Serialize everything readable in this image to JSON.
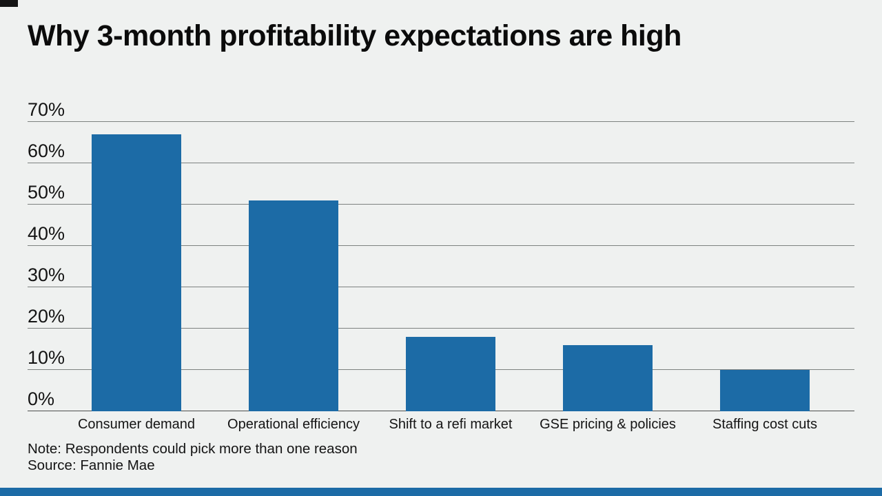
{
  "page": {
    "title": "Why 3-month profitability expectations are high",
    "note": "Note: Respondents could pick more than one reason",
    "source": "Source: Fannie Mae"
  },
  "colors": {
    "background": "#eff1f0",
    "bar": "#1c6ba6",
    "accent_strip": "#1c6ba6",
    "gridline": "#7d817f",
    "axis_line": "#4d4f4e",
    "corner_mark": "#141414",
    "text": "#141414"
  },
  "chart_data": {
    "type": "bar",
    "title": "Why 3-month profitability expectations are high",
    "categories": [
      "Consumer demand",
      "Operational efficiency",
      "Shift to a refi market",
      "GSE pricing & policies",
      "Staffing cost cuts"
    ],
    "values": [
      67,
      51,
      18,
      16,
      10
    ],
    "value_suffix": "%",
    "xlabel": "",
    "ylabel": "",
    "ylim": [
      0,
      70
    ],
    "ytick_step": 10,
    "ytick_labels": [
      "0%",
      "10%",
      "20%",
      "30%",
      "40%",
      "50%",
      "60%",
      "70%"
    ],
    "grid": true,
    "legend": false,
    "note": "Note: Respondents could pick more than one reason",
    "source": "Fannie Mae"
  }
}
